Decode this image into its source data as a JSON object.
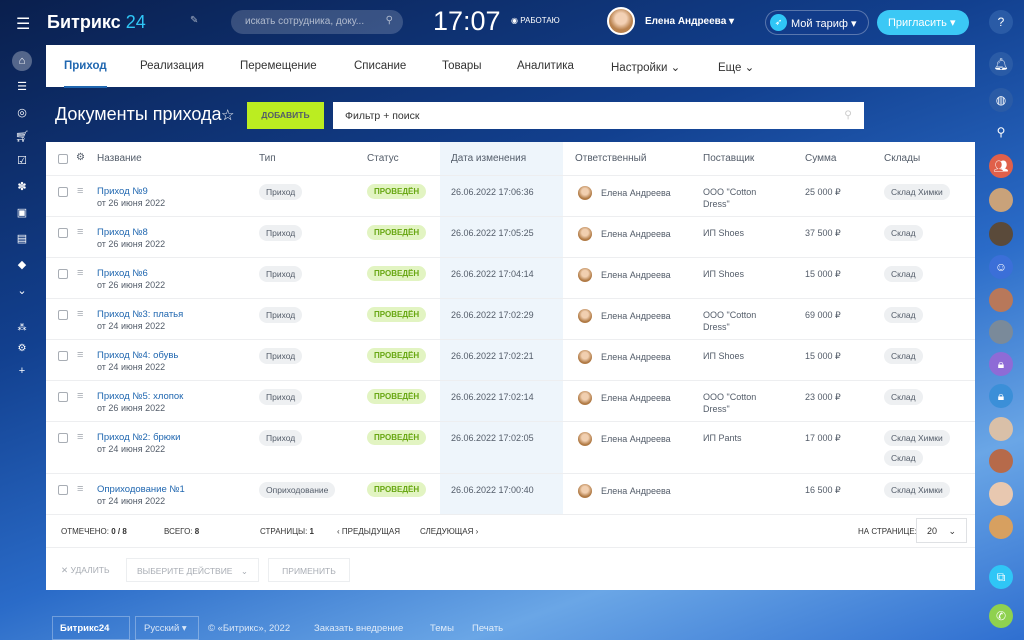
{
  "topbar": {
    "logo_main": "Битрикс",
    "logo_num": "24",
    "search_placeholder": "искать сотрудника, доку...",
    "time": "17:07",
    "work_status": "РАБОТАЮ",
    "user_name": "Елена Андреева",
    "tariff": "Мой тариф",
    "invite": "Пригласить"
  },
  "tabs": [
    "Приход",
    "Реализация",
    "Перемещение",
    "Списание",
    "Товары",
    "Аналитика",
    "Настройки",
    "Еще"
  ],
  "page": {
    "title": "Документы прихода",
    "add_label": "ДОБАВИТЬ",
    "filter_value": "Фильтр + поиск"
  },
  "table": {
    "headers": [
      "Название",
      "Тип",
      "Статус",
      "Дата изменения",
      "Ответственный",
      "Поставщик",
      "Сумма",
      "Склады"
    ],
    "rows": [
      {
        "name": "Приход №9",
        "date_sub": "от 26 июня 2022",
        "type": "Приход",
        "status": "ПРОВЕДЁН",
        "modified": "26.06.2022 17:06:36",
        "responsible": "Елена Андреева",
        "supplier": "ООО \"Cotton Dress\"",
        "sum": "25 000 ₽",
        "stores": [
          "Склад Химки"
        ]
      },
      {
        "name": "Приход №8",
        "date_sub": "от 26 июня 2022",
        "type": "Приход",
        "status": "ПРОВЕДЁН",
        "modified": "26.06.2022 17:05:25",
        "responsible": "Елена Андреева",
        "supplier": "ИП Shoes",
        "sum": "37 500 ₽",
        "stores": [
          "Склад"
        ]
      },
      {
        "name": "Приход №6",
        "date_sub": "от 26 июня 2022",
        "type": "Приход",
        "status": "ПРОВЕДЁН",
        "modified": "26.06.2022 17:04:14",
        "responsible": "Елена Андреева",
        "supplier": "ИП Shoes",
        "sum": "15 000 ₽",
        "stores": [
          "Склад"
        ]
      },
      {
        "name": "Приход №3: платья",
        "date_sub": "от 24 июня 2022",
        "type": "Приход",
        "status": "ПРОВЕДЁН",
        "modified": "26.06.2022 17:02:29",
        "responsible": "Елена Андреева",
        "supplier": "ООО \"Cotton Dress\"",
        "sum": "69 000 ₽",
        "stores": [
          "Склад"
        ]
      },
      {
        "name": "Приход №4: обувь",
        "date_sub": "от 24 июня 2022",
        "type": "Приход",
        "status": "ПРОВЕДЁН",
        "modified": "26.06.2022 17:02:21",
        "responsible": "Елена Андреева",
        "supplier": "ИП Shoes",
        "sum": "15 000 ₽",
        "stores": [
          "Склад"
        ]
      },
      {
        "name": "Приход №5: хлопок",
        "date_sub": "от 26 июня 2022",
        "type": "Приход",
        "status": "ПРОВЕДЁН",
        "modified": "26.06.2022 17:02:14",
        "responsible": "Елена Андреева",
        "supplier": "ООО \"Cotton Dress\"",
        "sum": "23 000 ₽",
        "stores": [
          "Склад"
        ]
      },
      {
        "name": "Приход №2: брюки",
        "date_sub": "от 24 июня 2022",
        "type": "Приход",
        "status": "ПРОВЕДЁН",
        "modified": "26.06.2022 17:02:05",
        "responsible": "Елена Андреева",
        "supplier": "ИП Pants",
        "sum": "17 000 ₽",
        "stores": [
          "Склад Химки",
          "Склад"
        ]
      },
      {
        "name": "Оприходование №1",
        "date_sub": "от 24 июня 2022",
        "type": "Оприходование",
        "status": "ПРОВЕДЁН",
        "modified": "26.06.2022 17:00:40",
        "responsible": "Елена Андреева",
        "supplier": "",
        "sum": "16 500 ₽",
        "stores": [
          "Склад Химки"
        ]
      }
    ]
  },
  "footer": {
    "checked_label": "ОТМЕЧЕНО:",
    "checked": "0 / 8",
    "total_label": "ВСЕГО:",
    "total": "8",
    "pages_label": "СТРАНИЦЫ:",
    "page": "1",
    "prev": "ПРЕДЫДУЩАЯ",
    "next": "СЛЕДУЮЩАЯ",
    "per_page_label": "НА СТРАНИЦЕ:",
    "per_page": "20"
  },
  "actions": {
    "delete": "УДАЛИТЬ",
    "choose": "ВЫБЕРИТЕ ДЕЙСТВИЕ",
    "apply": "ПРИМЕНИТЬ"
  },
  "bottom": {
    "logo": "Битрикс24",
    "lang": "Русский",
    "copyright": "© «Битрикс», 2022",
    "order": "Заказать внедрение",
    "themes": "Темы",
    "print": "Печать"
  },
  "colors": {
    "accent": "#2067b0",
    "add_button": "#bbed21",
    "invite": "#3bc8f5",
    "status_bg": "#e2f4c2"
  }
}
